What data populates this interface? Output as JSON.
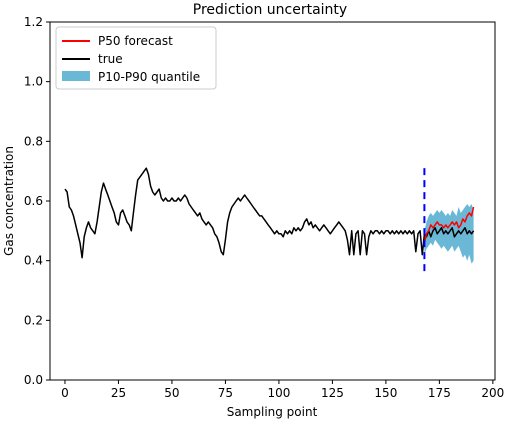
{
  "chart_data": {
    "type": "line",
    "title": "Prediction uncertainty",
    "xlabel": "Sampling point",
    "ylabel": "Gas concentration",
    "xlim": [
      -7,
      201
    ],
    "ylim": [
      0.0,
      1.2
    ],
    "xticks": [
      0,
      25,
      50,
      75,
      100,
      125,
      150,
      175,
      200
    ],
    "yticks": [
      0.0,
      0.2,
      0.4,
      0.6,
      0.8,
      1.0,
      1.2
    ],
    "xtick_labels": [
      "0",
      "25",
      "50",
      "75",
      "100",
      "125",
      "150",
      "175",
      "200"
    ],
    "ytick_labels": [
      "0.0",
      "0.2",
      "0.4",
      "0.6",
      "0.8",
      "1.0",
      "1.2"
    ],
    "grid": false,
    "legend_position": "top-left",
    "legend": [
      "P50 forecast",
      "true",
      "P10-P90 quantile"
    ],
    "colors": {
      "true": "#000000",
      "forecast": "#ff0000",
      "band": "#6bb8d6",
      "divider": "#0000ff"
    },
    "forecast_start": 168,
    "series": [
      {
        "name": "true",
        "x": [
          0,
          1,
          2,
          3,
          4,
          5,
          6,
          7,
          8,
          9,
          10,
          11,
          12,
          13,
          14,
          15,
          16,
          17,
          18,
          19,
          20,
          21,
          22,
          23,
          24,
          25,
          26,
          27,
          28,
          29,
          30,
          31,
          32,
          33,
          34,
          35,
          36,
          37,
          38,
          39,
          40,
          41,
          42,
          43,
          44,
          45,
          46,
          47,
          48,
          49,
          50,
          51,
          52,
          53,
          54,
          55,
          56,
          57,
          58,
          59,
          60,
          61,
          62,
          63,
          64,
          65,
          66,
          67,
          68,
          69,
          70,
          71,
          72,
          73,
          74,
          75,
          76,
          77,
          78,
          79,
          80,
          81,
          82,
          83,
          84,
          85,
          86,
          87,
          88,
          89,
          90,
          91,
          92,
          93,
          94,
          95,
          96,
          97,
          98,
          99,
          100,
          101,
          102,
          103,
          104,
          105,
          106,
          107,
          108,
          109,
          110,
          111,
          112,
          113,
          114,
          115,
          116,
          117,
          118,
          119,
          120,
          121,
          122,
          123,
          124,
          125,
          126,
          127,
          128,
          129,
          130,
          131,
          132,
          133,
          134,
          135,
          136,
          137,
          138,
          139,
          140,
          141,
          142,
          143,
          144,
          145,
          146,
          147,
          148,
          149,
          150,
          151,
          152,
          153,
          154,
          155,
          156,
          157,
          158,
          159,
          160,
          161,
          162,
          163,
          164,
          165,
          166,
          167,
          168,
          169,
          170,
          171,
          172,
          173,
          174,
          175,
          176,
          177,
          178,
          179,
          180,
          181,
          182,
          183,
          184,
          185,
          186,
          187,
          188,
          189,
          190,
          191
        ],
        "values": [
          0.64,
          0.63,
          0.58,
          0.57,
          0.55,
          0.52,
          0.49,
          0.46,
          0.41,
          0.48,
          0.51,
          0.53,
          0.51,
          0.5,
          0.49,
          0.53,
          0.58,
          0.63,
          0.66,
          0.64,
          0.62,
          0.6,
          0.58,
          0.56,
          0.53,
          0.52,
          0.56,
          0.57,
          0.55,
          0.53,
          0.52,
          0.5,
          0.56,
          0.62,
          0.67,
          0.68,
          0.69,
          0.7,
          0.71,
          0.69,
          0.65,
          0.63,
          0.62,
          0.63,
          0.64,
          0.61,
          0.6,
          0.61,
          0.6,
          0.6,
          0.61,
          0.6,
          0.6,
          0.61,
          0.6,
          0.61,
          0.62,
          0.61,
          0.59,
          0.58,
          0.57,
          0.56,
          0.55,
          0.56,
          0.54,
          0.53,
          0.52,
          0.53,
          0.52,
          0.51,
          0.49,
          0.48,
          0.46,
          0.43,
          0.42,
          0.47,
          0.53,
          0.56,
          0.58,
          0.59,
          0.6,
          0.61,
          0.6,
          0.61,
          0.62,
          0.61,
          0.6,
          0.59,
          0.58,
          0.57,
          0.56,
          0.55,
          0.55,
          0.54,
          0.53,
          0.52,
          0.51,
          0.5,
          0.49,
          0.5,
          0.49,
          0.49,
          0.48,
          0.5,
          0.49,
          0.5,
          0.49,
          0.51,
          0.5,
          0.51,
          0.5,
          0.51,
          0.53,
          0.54,
          0.52,
          0.53,
          0.51,
          0.52,
          0.51,
          0.5,
          0.51,
          0.52,
          0.51,
          0.5,
          0.49,
          0.5,
          0.51,
          0.52,
          0.53,
          0.52,
          0.51,
          0.5,
          0.47,
          0.42,
          0.5,
          0.42,
          0.49,
          0.5,
          0.42,
          0.5,
          0.49,
          0.42,
          0.48,
          0.5,
          0.49,
          0.5,
          0.5,
          0.49,
          0.5,
          0.49,
          0.5,
          0.5,
          0.49,
          0.5,
          0.49,
          0.5,
          0.49,
          0.5,
          0.49,
          0.5,
          0.49,
          0.5,
          0.49,
          0.5,
          0.43,
          0.49,
          0.5,
          0.42,
          0.49,
          0.48,
          0.5,
          0.48,
          0.5,
          0.51,
          0.49,
          0.5,
          0.51,
          0.49,
          0.5,
          0.49,
          0.5,
          0.51,
          0.48,
          0.49,
          0.5,
          0.49,
          0.5,
          0.51,
          0.49,
          0.5,
          0.49,
          0.5
        ]
      },
      {
        "name": "P50 forecast",
        "x": [
          168,
          169,
          170,
          171,
          172,
          173,
          174,
          175,
          176,
          177,
          178,
          179,
          180,
          181,
          182,
          183,
          184,
          185,
          186,
          187,
          188,
          189,
          190,
          191
        ],
        "values": [
          0.46,
          0.49,
          0.5,
          0.52,
          0.51,
          0.52,
          0.53,
          0.52,
          0.52,
          0.51,
          0.52,
          0.51,
          0.52,
          0.53,
          0.52,
          0.53,
          0.51,
          0.52,
          0.54,
          0.53,
          0.55,
          0.56,
          0.55,
          0.58
        ]
      }
    ],
    "band": {
      "name": "P10-P90 quantile",
      "x": [
        168,
        169,
        170,
        171,
        172,
        173,
        174,
        175,
        176,
        177,
        178,
        179,
        180,
        181,
        182,
        183,
        184,
        185,
        186,
        187,
        188,
        189,
        190,
        191
      ],
      "p10": [
        0.42,
        0.44,
        0.45,
        0.46,
        0.45,
        0.47,
        0.46,
        0.45,
        0.44,
        0.45,
        0.44,
        0.43,
        0.44,
        0.45,
        0.43,
        0.44,
        0.45,
        0.43,
        0.41,
        0.42,
        0.4,
        0.42,
        0.39,
        0.4
      ],
      "p90": [
        0.5,
        0.53,
        0.55,
        0.56,
        0.55,
        0.56,
        0.57,
        0.56,
        0.57,
        0.56,
        0.55,
        0.56,
        0.55,
        0.57,
        0.56,
        0.55,
        0.58,
        0.56,
        0.57,
        0.58,
        0.59,
        0.58,
        0.59,
        0.57
      ]
    }
  }
}
